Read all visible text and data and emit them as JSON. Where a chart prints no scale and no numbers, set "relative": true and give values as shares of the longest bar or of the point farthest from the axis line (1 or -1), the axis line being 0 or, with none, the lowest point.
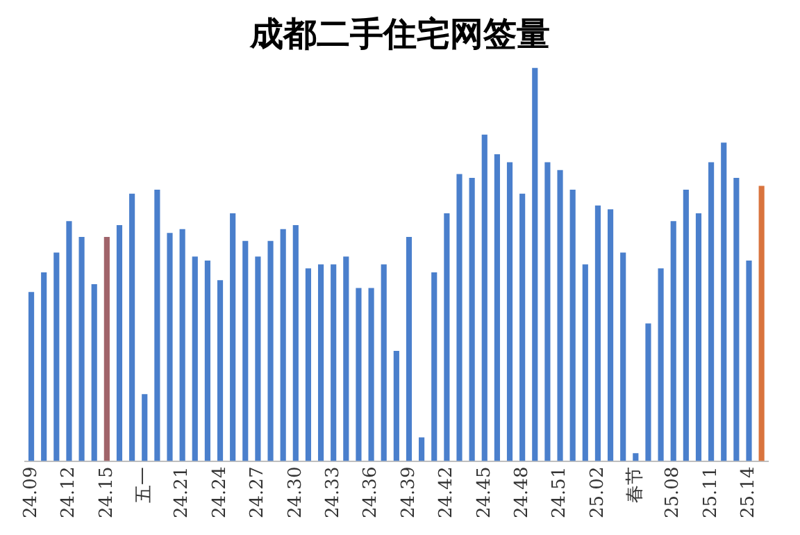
{
  "chart_data": {
    "type": "bar",
    "title": "成都二手住宅网签量",
    "relative": true,
    "grid": false,
    "legend": false,
    "categories": [
      "24.09",
      null,
      null,
      "24.12",
      null,
      null,
      "24.15",
      null,
      null,
      "五一",
      null,
      null,
      "24.21",
      null,
      null,
      "24.24",
      null,
      null,
      "24.27",
      null,
      null,
      "24.30",
      null,
      null,
      "24.33",
      null,
      null,
      "24.36",
      null,
      null,
      "24.39",
      null,
      null,
      "24.42",
      null,
      null,
      "24.45",
      null,
      null,
      "24.48",
      null,
      null,
      "24.51",
      null,
      null,
      "25.02",
      null,
      null,
      "春节",
      null,
      null,
      "25.08",
      null,
      null,
      "25.11",
      null,
      null,
      "25.14",
      null
    ],
    "values": [
      0.43,
      0.48,
      0.53,
      0.61,
      0.57,
      0.45,
      0.57,
      0.6,
      0.68,
      0.17,
      0.69,
      0.58,
      0.59,
      0.52,
      0.51,
      0.46,
      0.63,
      0.56,
      0.52,
      0.56,
      0.59,
      0.6,
      0.49,
      0.5,
      0.5,
      0.52,
      0.44,
      0.44,
      0.5,
      0.28,
      0.57,
      0.06,
      0.48,
      0.63,
      0.73,
      0.72,
      0.83,
      0.78,
      0.76,
      0.68,
      1,
      0.76,
      0.74,
      0.69,
      0.5,
      0.65,
      0.64,
      0.53,
      0.02,
      0.35,
      0.49,
      0.61,
      0.69,
      0.63,
      0.76,
      0.81,
      0.72,
      0.51,
      0.7
    ],
    "colors": [
      "#4a7fcc",
      "#4a7fcc",
      "#4a7fcc",
      "#4a7fcc",
      "#4a7fcc",
      "#4a7fcc",
      "#a0646a",
      "#4a7fcc",
      "#4a7fcc",
      "#4a7fcc",
      "#4a7fcc",
      "#4a7fcc",
      "#4a7fcc",
      "#4a7fcc",
      "#4a7fcc",
      "#4a7fcc",
      "#4a7fcc",
      "#4a7fcc",
      "#4a7fcc",
      "#4a7fcc",
      "#4a7fcc",
      "#4a7fcc",
      "#4a7fcc",
      "#4a7fcc",
      "#4a7fcc",
      "#4a7fcc",
      "#4a7fcc",
      "#4a7fcc",
      "#4a7fcc",
      "#4a7fcc",
      "#4a7fcc",
      "#4a7fcc",
      "#4a7fcc",
      "#4a7fcc",
      "#4a7fcc",
      "#4a7fcc",
      "#4a7fcc",
      "#4a7fcc",
      "#4a7fcc",
      "#4a7fcc",
      "#4a7fcc",
      "#4a7fcc",
      "#4a7fcc",
      "#4a7fcc",
      "#4a7fcc",
      "#4a7fcc",
      "#4a7fcc",
      "#4a7fcc",
      "#4a7fcc",
      "#4a7fcc",
      "#4a7fcc",
      "#4a7fcc",
      "#4a7fcc",
      "#4a7fcc",
      "#4a7fcc",
      "#4a7fcc",
      "#4a7fcc",
      "#4a7fcc",
      "#d9743e"
    ]
  }
}
